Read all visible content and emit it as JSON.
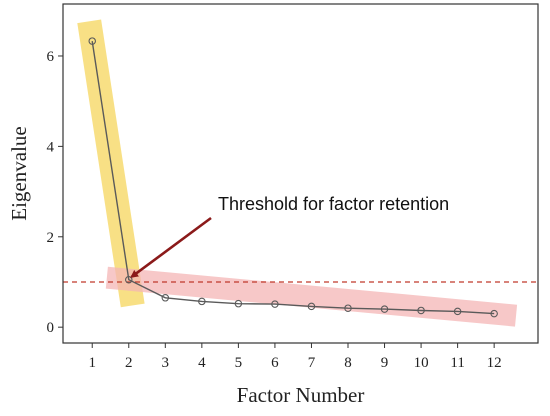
{
  "chart_data": {
    "type": "line",
    "title": "",
    "xlabel": "Factor Number",
    "ylabel": "Eigenvalue",
    "x": [
      1,
      2,
      3,
      4,
      5,
      6,
      7,
      8,
      9,
      10,
      11,
      12
    ],
    "series": [
      {
        "values": [
          6.33,
          1.05,
          0.65,
          0.57,
          0.52,
          0.51,
          0.46,
          0.42,
          0.4,
          0.37,
          0.35,
          0.3
        ]
      }
    ],
    "x_ticks": [
      "1",
      "2",
      "3",
      "4",
      "5",
      "6",
      "7",
      "8",
      "9",
      "10",
      "11",
      "12"
    ],
    "y_ticks": [
      "0",
      "2",
      "4",
      "6"
    ],
    "xlim": [
      0.2,
      13.2
    ],
    "ylim": [
      -0.35,
      7.15
    ],
    "grid": false,
    "threshold": {
      "y": 1,
      "color": "#c0392b"
    },
    "annotation": {
      "text": "Threshold for factor retention",
      "points_to_x": 2,
      "points_to_y": 1.05,
      "color": "#8b1a1a"
    },
    "highlights": [
      {
        "name": "steep-segment",
        "from_x": 1,
        "to_x": 2,
        "color": "#f6d55c"
      },
      {
        "name": "flat-segment",
        "from_x": 2,
        "to_x": 12,
        "color": "#f4b6b6"
      }
    ],
    "colors": {
      "line": "#5a5a5a",
      "marker": "#5a5a5a",
      "axis": "#333333"
    }
  }
}
